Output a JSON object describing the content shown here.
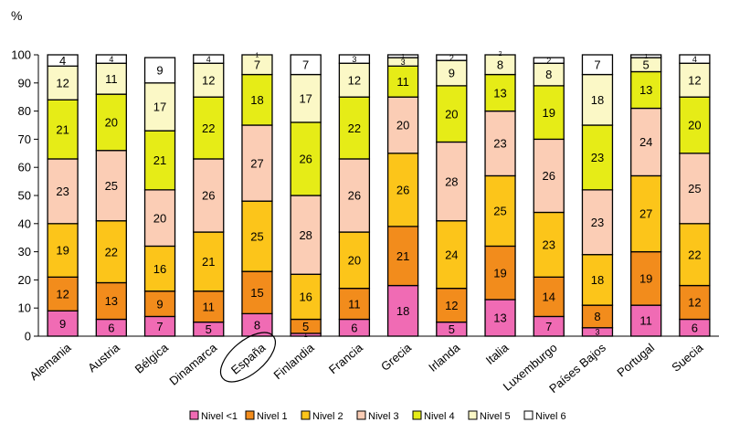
{
  "chart_data": {
    "type": "bar",
    "stacked": true,
    "unit_label": "%",
    "ylim": [
      0,
      100
    ],
    "yticks": [
      0,
      10,
      20,
      30,
      40,
      50,
      60,
      70,
      80,
      90,
      100
    ],
    "categories": [
      "Alemania",
      "Austria",
      "Bélgica",
      "Dinamarca",
      "España",
      "Finlandia",
      "Francia",
      "Grecia",
      "Irlanda",
      "Italia",
      "Luxemburgo",
      "Países Bajos",
      "Portugal",
      "Suecia"
    ],
    "highlighted_category": "España",
    "legend_position": "bottom",
    "series": [
      {
        "name": "Nivel <1",
        "color": "#f06bb4",
        "values": [
          9,
          6,
          7,
          5,
          8,
          1,
          6,
          18,
          5,
          13,
          7,
          3,
          11,
          6
        ]
      },
      {
        "name": "Nivel 1",
        "color": "#f28c1c",
        "values": [
          12,
          13,
          9,
          11,
          15,
          5,
          11,
          21,
          12,
          19,
          14,
          8,
          19,
          12
        ]
      },
      {
        "name": "Nivel 2",
        "color": "#fcc51a",
        "values": [
          19,
          22,
          16,
          21,
          25,
          16,
          20,
          26,
          24,
          25,
          23,
          18,
          27,
          22
        ]
      },
      {
        "name": "Nivel 3",
        "color": "#fbcdb5",
        "values": [
          23,
          25,
          20,
          26,
          27,
          28,
          26,
          20,
          28,
          23,
          26,
          23,
          24,
          25
        ]
      },
      {
        "name": "Nivel 4",
        "color": "#e6ec17",
        "values": [
          21,
          20,
          21,
          22,
          18,
          26,
          22,
          11,
          20,
          13,
          19,
          23,
          13,
          20
        ]
      },
      {
        "name": "Nivel 5",
        "color": "#fbf8c6",
        "values": [
          12,
          11,
          17,
          12,
          7,
          17,
          12,
          3,
          9,
          8,
          8,
          18,
          5,
          12
        ]
      },
      {
        "name": "Nivel 6",
        "color": "#ffffff",
        "values": [
          4,
          4,
          9,
          4,
          1,
          7,
          3,
          1,
          2,
          2,
          2,
          7,
          1,
          4
        ]
      }
    ]
  }
}
